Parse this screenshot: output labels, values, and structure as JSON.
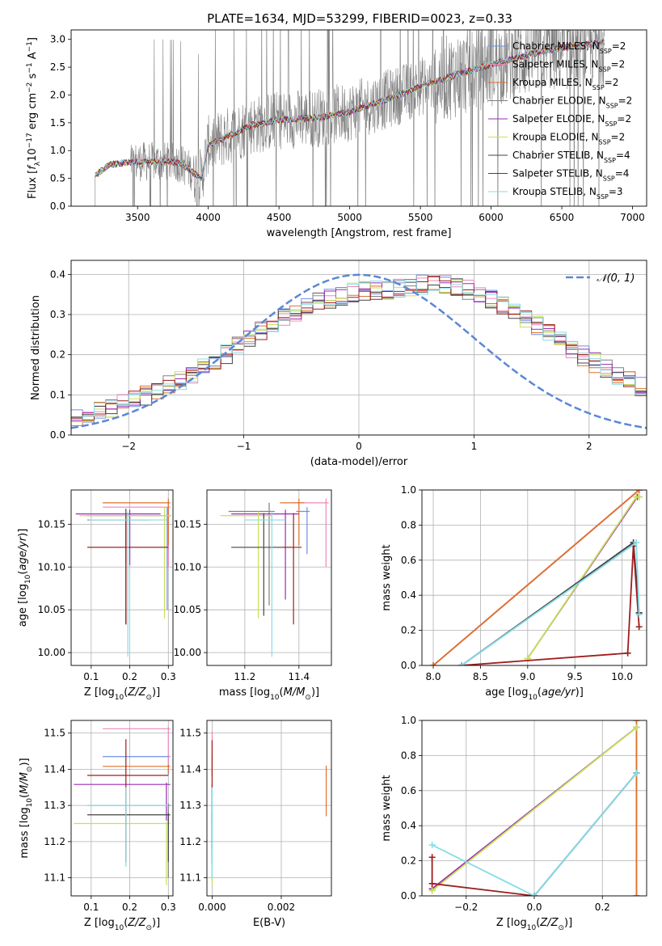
{
  "figure": {
    "title": "PLATE=1634, MJD=53299, FIBERID=0023, z=0.33"
  },
  "series_styles": [
    {
      "name": "Chabrier MILES",
      "nssp": "2",
      "color": "#6f8fe6"
    },
    {
      "name": "Salpeter MILES",
      "nssp": "2",
      "color": "#ef86b8"
    },
    {
      "name": "Kroupa MILES",
      "nssp": "2",
      "color": "#e0702b"
    },
    {
      "name": "Chabrier ELODIE",
      "nssp": "2",
      "color": "#808080"
    },
    {
      "name": "Salpeter ELODIE",
      "nssp": "2",
      "color": "#9b2ab4"
    },
    {
      "name": "Kroupa ELODIE",
      "nssp": "2",
      "color": "#c8e05a"
    },
    {
      "name": "Chabrier STELIB",
      "nssp": "4",
      "color": "#444444"
    },
    {
      "name": "Salpeter STELIB",
      "nssp": "4",
      "color": "#a01c1c"
    },
    {
      "name": "Kroupa STELIB",
      "nssp": "3",
      "color": "#86dde8"
    }
  ],
  "chart_data": [
    {
      "id": "spectrum",
      "type": "line",
      "xlabel": "wavelength [Angstrom, rest frame]",
      "ylabel": "Flux [f_λ 10⁻¹⁷ erg cm⁻² s⁻¹ A⁻¹]",
      "xlim": [
        3030,
        7100
      ],
      "ylim": [
        0,
        3.17
      ],
      "xticks": [
        3500,
        4000,
        4500,
        5000,
        5500,
        6000,
        6500,
        7000
      ],
      "yticks": [
        0.0,
        0.5,
        1.0,
        1.5,
        2.0,
        2.5,
        3.0
      ],
      "data_color": "#808080",
      "data_range": [
        3200,
        6800
      ],
      "model_trend": {
        "x": [
          3200,
          3300,
          3500,
          3700,
          3800,
          3950,
          4000,
          4300,
          4500,
          4800,
          5000,
          5300,
          5500,
          5800,
          6000,
          6300,
          6500,
          6800
        ],
        "y": [
          0.55,
          0.75,
          0.8,
          0.8,
          0.78,
          0.5,
          1.1,
          1.45,
          1.55,
          1.6,
          1.7,
          1.95,
          2.15,
          2.4,
          2.55,
          2.75,
          2.85,
          2.95
        ]
      },
      "legend": "upper right"
    },
    {
      "id": "residuals",
      "type": "histogram",
      "xlabel": "(data-model)/error",
      "ylabel": "Normed distribution",
      "xlim": [
        -2.5,
        2.5
      ],
      "ylim": [
        0,
        0.435
      ],
      "xticks": [
        -2,
        -1,
        0,
        1,
        2
      ],
      "yticks": [
        0.0,
        0.1,
        0.2,
        0.3,
        0.4
      ],
      "bin_width": 0.1,
      "base_profile": [
        0.03,
        0.032,
        0.034,
        0.036,
        0.04,
        0.045,
        0.052,
        0.06,
        0.068,
        0.077,
        0.087,
        0.098,
        0.11,
        0.123,
        0.137,
        0.152,
        0.168,
        0.185,
        0.203,
        0.222,
        0.24,
        0.258,
        0.275,
        0.29,
        0.305,
        0.318,
        0.33,
        0.34,
        0.348,
        0.354,
        0.358,
        0.36,
        0.362,
        0.365,
        0.37,
        0.375,
        0.38,
        0.376,
        0.37,
        0.362,
        0.352,
        0.34,
        0.325,
        0.308,
        0.29,
        0.272,
        0.253,
        0.234,
        0.215,
        0.197,
        0.18,
        0.164,
        0.149,
        0.135,
        0.122,
        0.11,
        0.099,
        0.089,
        0.08,
        0.072,
        0.065,
        0.058,
        0.052,
        0.047,
        0.043,
        0.04,
        0.037,
        0.035,
        0.033,
        0.031
      ],
      "gaussian": {
        "name": "𝒩(0, 1)",
        "color": "#5b87d6"
      },
      "legend": "upper right"
    },
    {
      "id": "age-vs-Z",
      "type": "errorbar",
      "xlabel": "Z [log10(Z/Z⊙)]",
      "ylabel": "age  [log10(age/yr)]",
      "xlim": [
        0.048,
        0.312
      ],
      "ylim": [
        9.985,
        10.19
      ],
      "xticks": [
        0.1,
        0.2,
        0.3
      ],
      "yticks": [
        10.0,
        10.05,
        10.1,
        10.15
      ],
      "points": [
        {
          "x": 0.297,
          "y": 10.16,
          "xerr": [
            0.21,
            0.01
          ],
          "yerr": [
            0.11,
            0.01
          ]
        },
        {
          "x": 0.3,
          "y": 10.17,
          "xerr": [
            0.17,
            0.005
          ],
          "yerr": [
            0.07,
            0.005
          ]
        },
        {
          "x": 0.3,
          "y": 10.175,
          "xerr": [
            0.17,
            0.005
          ],
          "yerr": [
            0.05,
            0.005
          ]
        },
        {
          "x": 0.19,
          "y": 10.155,
          "xerr": [
            0.1,
            0.06
          ],
          "yerr": [
            0.05,
            0.005
          ]
        },
        {
          "x": 0.2,
          "y": 10.162,
          "xerr": [
            0.14,
            0.08
          ],
          "yerr": [
            0.06,
            0.005
          ]
        },
        {
          "x": 0.29,
          "y": 10.16,
          "xerr": [
            0.22,
            0.015
          ],
          "yerr": [
            0.12,
            0.01
          ]
        },
        {
          "x": 0.19,
          "y": 10.123,
          "xerr": [
            0.1,
            0.11
          ],
          "yerr": [
            0.09,
            0.045
          ]
        },
        {
          "x": 0.19,
          "y": 10.123,
          "xerr": [
            0.1,
            0.11
          ],
          "yerr": [
            0.09,
            0.035
          ]
        },
        {
          "x": 0.195,
          "y": 10.155,
          "xerr": [
            0.1,
            0.1
          ],
          "yerr": [
            0.16,
            0.01
          ]
        }
      ]
    },
    {
      "id": "age-vs-mass",
      "type": "errorbar",
      "xlabel": "mass [log10(M/M⊙)]",
      "ylabel": "",
      "xlim": [
        11.06,
        11.52
      ],
      "ylim": [
        9.985,
        10.19
      ],
      "xticks": [
        11.2,
        11.4
      ],
      "yticks": [
        10.0,
        10.05,
        10.1,
        10.15
      ],
      "points": [
        {
          "x": 11.43,
          "y": 10.165,
          "xerr": [
            0.04,
            0.01
          ],
          "yerr": [
            0.05,
            0.005
          ]
        },
        {
          "x": 11.5,
          "y": 10.175,
          "xerr": [
            0.12,
            0.01
          ],
          "yerr": [
            0.075,
            0.005
          ]
        },
        {
          "x": 11.4,
          "y": 10.175,
          "xerr": [
            0.07,
            0.02
          ],
          "yerr": [
            0.05,
            0.005
          ]
        },
        {
          "x": 11.29,
          "y": 10.165,
          "xerr": [
            0.15,
            0.02
          ],
          "yerr": [
            0.11,
            0.01
          ]
        },
        {
          "x": 11.35,
          "y": 10.162,
          "xerr": [
            0.2,
            0.05
          ],
          "yerr": [
            0.1,
            0.005
          ]
        },
        {
          "x": 11.25,
          "y": 10.16,
          "xerr": [
            0.14,
            0.05
          ],
          "yerr": [
            0.12,
            0.005
          ]
        },
        {
          "x": 11.27,
          "y": 10.123,
          "xerr": [
            0.12,
            0.1
          ],
          "yerr": [
            0.08,
            0.04
          ]
        },
        {
          "x": 11.38,
          "y": 10.123,
          "xerr": [
            0.04,
            0.03
          ],
          "yerr": [
            0.09,
            0.04
          ]
        },
        {
          "x": 11.3,
          "y": 10.155,
          "xerr": [
            0.1,
            0.05
          ],
          "yerr": [
            0.16,
            0.01
          ]
        }
      ]
    },
    {
      "id": "weight-vs-age",
      "type": "line",
      "xlabel": "age  [log10(age/yr)]",
      "ylabel": "mass weight",
      "xlim": [
        7.88,
        10.26
      ],
      "ylim": [
        0,
        1
      ],
      "xticks": [
        8.0,
        8.5,
        9.0,
        9.5,
        10.0
      ],
      "yticks": [
        0.0,
        0.2,
        0.4,
        0.6,
        0.8,
        1.0
      ],
      "lines": [
        {
          "x": [
            8.0,
            10.18
          ],
          "y": [
            0.0,
            1.0
          ]
        },
        {
          "x": [
            8.0,
            10.18
          ],
          "y": [
            0.0,
            1.0
          ]
        },
        {
          "x": [
            8.0,
            10.18
          ],
          "y": [
            0.0,
            1.0
          ]
        },
        {
          "x": [
            8.3,
            10.12,
            10.18
          ],
          "y": [
            0.0,
            0.7,
            0.3
          ]
        },
        {
          "x": [
            9.0,
            10.16,
            10.18
          ],
          "y": [
            0.04,
            0.96,
            0.96
          ]
        },
        {
          "x": [
            9.0,
            10.15,
            10.18
          ],
          "y": [
            0.04,
            0.96,
            0.96
          ]
        },
        {
          "x": [
            8.3,
            10.12,
            10.18
          ],
          "y": [
            0.0,
            0.7,
            0.3
          ]
        },
        {
          "x": [
            8.3,
            10.06,
            10.12,
            10.18
          ],
          "y": [
            0.0,
            0.07,
            0.68,
            0.22
          ]
        },
        {
          "x": [
            8.3,
            10.15,
            10.18
          ],
          "y": [
            0.0,
            0.7,
            0.29
          ]
        }
      ]
    },
    {
      "id": "mass-vs-Z",
      "type": "errorbar",
      "xlabel": "Z [log10(Z/Z⊙)]",
      "ylabel": "mass [log10(M/M⊙)]",
      "xlim": [
        0.048,
        0.312
      ],
      "ylim": [
        11.05,
        11.535
      ],
      "xticks": [
        0.1,
        0.2,
        0.3
      ],
      "yticks": [
        11.1,
        11.2,
        11.3,
        11.4,
        11.5
      ],
      "points": [
        {
          "x": 0.3,
          "y": 11.435,
          "xerr": [
            0.17,
            0.005
          ],
          "yerr": [
            0.05,
            0.005
          ]
        },
        {
          "x": 0.3,
          "y": 11.512,
          "xerr": [
            0.17,
            0.005
          ],
          "yerr": [
            0.12,
            0.005
          ]
        },
        {
          "x": 0.3,
          "y": 11.408,
          "xerr": [
            0.17,
            0.005
          ],
          "yerr": [
            0.02,
            0.005
          ]
        },
        {
          "x": 0.3,
          "y": 11.3,
          "xerr": [
            0.21,
            0.005
          ],
          "yerr": [
            0.2,
            0.005
          ]
        },
        {
          "x": 0.295,
          "y": 11.358,
          "xerr": [
            0.24,
            0.01
          ],
          "yerr": [
            0.1,
            0.005
          ]
        },
        {
          "x": 0.295,
          "y": 11.25,
          "xerr": [
            0.24,
            0.01
          ],
          "yerr": [
            0.17,
            0.005
          ]
        },
        {
          "x": 0.3,
          "y": 11.274,
          "xerr": [
            0.21,
            0.005
          ],
          "yerr": [
            0.13,
            0.005
          ]
        },
        {
          "x": 0.19,
          "y": 11.383,
          "xerr": [
            0.1,
            0.11
          ],
          "yerr": [
            0.24,
            0.1
          ]
        },
        {
          "x": 0.19,
          "y": 11.3,
          "xerr": [
            0.1,
            0.11
          ],
          "yerr": [
            0.17,
            0.05
          ]
        }
      ]
    },
    {
      "id": "mass-vs-ebv",
      "type": "errorbar",
      "xlabel": "E(B-V)",
      "ylabel": "",
      "xlim": [
        -0.00015,
        0.00345
      ],
      "ylim": [
        11.05,
        11.535
      ],
      "xticks": [
        0.0,
        0.002
      ],
      "yticks": [
        11.1,
        11.2,
        11.3,
        11.4,
        11.5
      ],
      "points": [
        {
          "x": 0.0,
          "y": 11.43,
          "xerr": [
            0,
            0
          ],
          "yerr": [
            0.05,
            0.005
          ]
        },
        {
          "x": 0.0,
          "y": 11.5,
          "xerr": [
            0,
            0
          ],
          "yerr": [
            0.12,
            0.005
          ]
        },
        {
          "x": 0.0033,
          "y": 11.34,
          "xerr": [
            0,
            0
          ],
          "yerr": [
            0.07,
            0.07
          ]
        },
        {
          "x": 0.0,
          "y": 11.29,
          "xerr": [
            0,
            0
          ],
          "yerr": [
            0.2,
            0.01
          ]
        },
        {
          "x": 0.0,
          "y": 11.35,
          "xerr": [
            0,
            0
          ],
          "yerr": [
            0.1,
            0.01
          ]
        },
        {
          "x": 0.0,
          "y": 11.25,
          "xerr": [
            0,
            0
          ],
          "yerr": [
            0.17,
            0.01
          ]
        },
        {
          "x": 0.0,
          "y": 11.27,
          "xerr": [
            0,
            0
          ],
          "yerr": [
            0.13,
            0.01
          ]
        },
        {
          "x": 0.0,
          "y": 11.38,
          "xerr": [
            0,
            0
          ],
          "yerr": [
            0.2,
            0.1
          ]
        },
        {
          "x": 0.0,
          "y": 11.3,
          "xerr": [
            0,
            0
          ],
          "yerr": [
            0.2,
            0.05
          ]
        }
      ]
    },
    {
      "id": "weight-vs-Z",
      "type": "line",
      "xlabel": "Z [log10(Z/Z⊙)]",
      "ylabel": "mass weight",
      "xlim": [
        -0.33,
        0.33
      ],
      "ylim": [
        0,
        1
      ],
      "xticks": [
        -0.2,
        0.0,
        0.2
      ],
      "yticks": [
        0.0,
        0.2,
        0.4,
        0.6,
        0.8,
        1.0
      ],
      "lines": [
        {
          "x": [
            0.0,
            0.3
          ],
          "y": [
            0.0,
            0.7
          ]
        },
        {
          "x": [
            0.3,
            0.3
          ],
          "y": [
            0.0,
            1.0
          ]
        },
        {
          "x": [
            0.3,
            0.3
          ],
          "y": [
            0.0,
            1.0
          ]
        },
        {
          "x": [
            -0.3,
            0.3
          ],
          "y": [
            0.04,
            0.96
          ]
        },
        {
          "x": [
            -0.3,
            0.3
          ],
          "y": [
            0.04,
            0.96
          ]
        },
        {
          "x": [
            -0.3,
            0.3
          ],
          "y": [
            0.03,
            0.96
          ]
        },
        {
          "x": [
            0.0,
            0.3
          ],
          "y": [
            0.0,
            0.7
          ]
        },
        {
          "x": [
            -0.3,
            -0.3,
            0.0
          ],
          "y": [
            0.22,
            0.07,
            0.0
          ]
        },
        {
          "x": [
            -0.3,
            0.0,
            0.3
          ],
          "y": [
            0.29,
            0.0,
            0.7
          ]
        }
      ]
    }
  ]
}
